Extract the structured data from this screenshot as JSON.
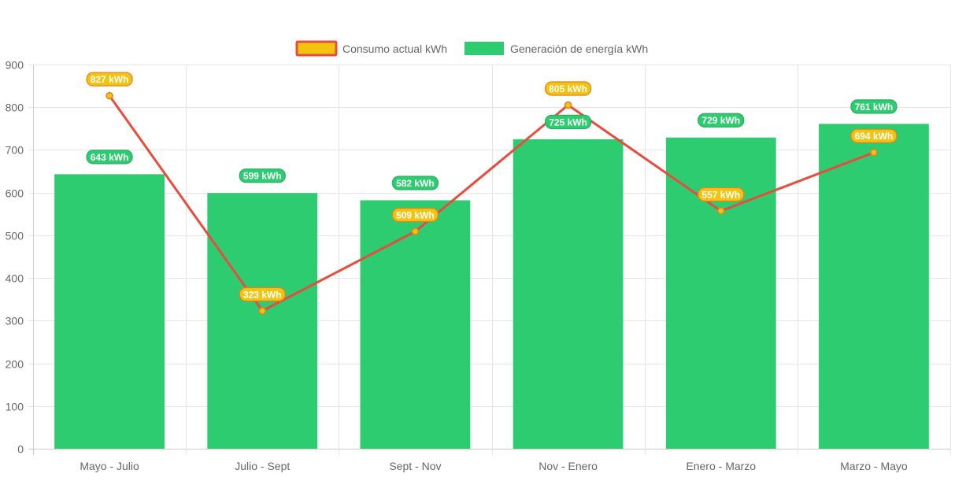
{
  "chart_data": {
    "type": "bar",
    "title": "",
    "xlabel": "",
    "ylabel": "",
    "ylim": [
      0,
      900
    ],
    "y_ticks": [
      0,
      100,
      200,
      300,
      400,
      500,
      600,
      700,
      800,
      900
    ],
    "grid": true,
    "legend_position": "top-center",
    "categories": [
      "Mayo - Julio",
      "Julio - Sept",
      "Sept - Nov",
      "Nov - Enero",
      "Enero - Marzo",
      "Marzo - Mayo"
    ],
    "series": [
      {
        "name": "Consumo actual kWh",
        "type": "line",
        "values": [
          827,
          323,
          509,
          805,
          557,
          694
        ],
        "labels": [
          "827 kWh",
          "323 kWh",
          "509 kWh",
          "805 kWh",
          "557 kWh",
          "694 kWh"
        ],
        "color": "#e74c3c",
        "fill": "#f1c40f",
        "label_bg": "#f1c40f",
        "label_border": "#e67e22"
      },
      {
        "name": "Generación de energía kWh",
        "type": "bar",
        "values": [
          643,
          599,
          582,
          725,
          729,
          761
        ],
        "labels": [
          "643 kWh",
          "599 kWh",
          "582 kWh",
          "725 kWh",
          "729 kWh",
          "761 kWh"
        ],
        "color": "#2ecc71",
        "label_bg": "#2ecc71",
        "label_border": "#27ae60"
      }
    ]
  },
  "colors": {
    "grid": "#e5e5e5",
    "axis": "#cccccc",
    "text": "#666666"
  }
}
